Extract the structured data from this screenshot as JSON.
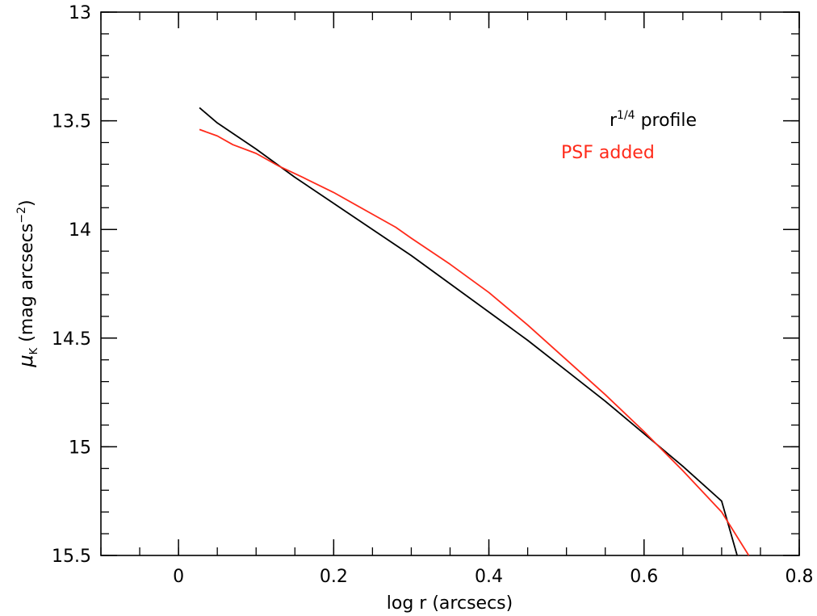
{
  "chart_data": {
    "type": "line",
    "title": "",
    "xlabel": "log r (arcsecs)",
    "ylabel": {
      "symbol": "μ",
      "subscript": "K",
      "text": " (mag arcsecs",
      "superscript": "−2",
      "close": ")"
    },
    "xlim": [
      -0.1,
      0.8
    ],
    "ylim": [
      13,
      15.5
    ],
    "y_inverted": true,
    "x_ticks": [
      {
        "value": 0,
        "label": "0"
      },
      {
        "value": 0.2,
        "label": "0.2"
      },
      {
        "value": 0.4,
        "label": "0.4"
      },
      {
        "value": 0.6,
        "label": "0.6"
      },
      {
        "value": 0.8,
        "label": "0.8"
      }
    ],
    "y_ticks": [
      {
        "value": 13,
        "label": "13"
      },
      {
        "value": 13.5,
        "label": "13.5"
      },
      {
        "value": 14,
        "label": "14"
      },
      {
        "value": 14.5,
        "label": "14.5"
      },
      {
        "value": 15,
        "label": "15"
      },
      {
        "value": 15.5,
        "label": "15.5"
      }
    ],
    "x_minor_step": 0.05,
    "y_minor_step": 0.1,
    "grid": false,
    "legend_position": "top-right",
    "series": [
      {
        "name": "r^1/4 profile",
        "legend": {
          "base": "r",
          "superscript": "1/4",
          "rest": " profile"
        },
        "color": "#000000",
        "x": [
          0.027,
          0.05,
          0.1,
          0.15,
          0.2,
          0.25,
          0.3,
          0.35,
          0.4,
          0.45,
          0.5,
          0.55,
          0.6,
          0.65,
          0.7,
          0.72
        ],
        "y": [
          13.44,
          13.51,
          13.63,
          13.76,
          13.88,
          14.0,
          14.12,
          14.25,
          14.38,
          14.51,
          14.65,
          14.79,
          14.94,
          15.09,
          15.25,
          15.5
        ]
      },
      {
        "name": "PSF added",
        "legend": {
          "base": "PSF added",
          "superscript": "",
          "rest": ""
        },
        "color": "#ff2a1a",
        "x": [
          0.027,
          0.05,
          0.07,
          0.1,
          0.13,
          0.16,
          0.2,
          0.25,
          0.28,
          0.3,
          0.35,
          0.4,
          0.45,
          0.5,
          0.55,
          0.6,
          0.65,
          0.7,
          0.735
        ],
        "y": [
          13.54,
          13.57,
          13.61,
          13.65,
          13.71,
          13.76,
          13.83,
          13.93,
          13.99,
          14.04,
          14.16,
          14.29,
          14.44,
          14.6,
          14.76,
          14.93,
          15.11,
          15.3,
          15.5
        ]
      }
    ]
  }
}
